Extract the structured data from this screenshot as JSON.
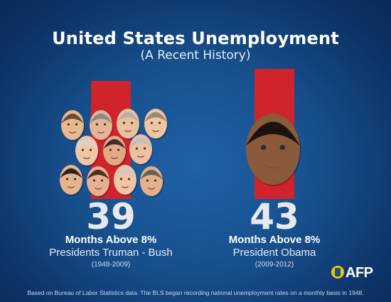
{
  "header": {
    "title": "United States Unemployment",
    "subtitle": "(A Recent History)"
  },
  "chart_data": {
    "type": "bar",
    "title": "United States Unemployment",
    "subtitle": "(A Recent History)",
    "categories": [
      "Presidents Truman - Bush",
      "President Obama"
    ],
    "values": [
      39,
      43
    ],
    "value_labels": [
      "39",
      "43"
    ],
    "metric_label": "Months Above 8%",
    "periods": [
      "(1948-2009)",
      "(2009-2012)"
    ],
    "ylim": [
      0,
      43
    ],
    "grid": false,
    "bar_color": "#d0242c"
  },
  "footnote": "Based on Bureau of Labor Statistics data. The BLS began recording national unemployment rates on a monthly basis in 1948.",
  "logo": {
    "text": "AFP",
    "icon": "afp-badge-icon",
    "badge_color": "#f2c400"
  },
  "faces": {
    "group_icon": "president-portrait-icon",
    "group_count": 11,
    "single_icon": "obama-portrait-icon"
  },
  "colors": {
    "background": "#174f8c",
    "bar": "#d0242c",
    "text": "#ffffff"
  }
}
